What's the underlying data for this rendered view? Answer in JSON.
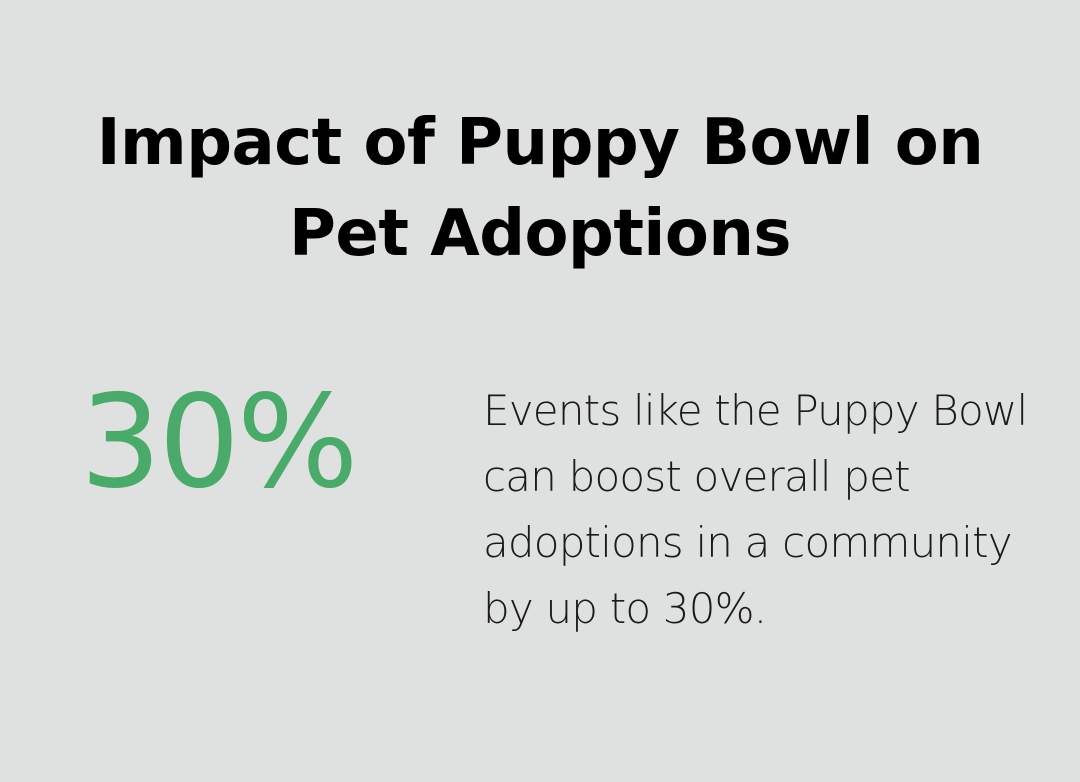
{
  "title": "Impact of Puppy Bowl on Pet Adoptions",
  "stat": {
    "value": "30%",
    "description": "Events like the Puppy Bowl can boost overall pet adoptions in a community by up to 30%."
  },
  "colors": {
    "background": "#dfe1e0",
    "accent": "#4aaa6a",
    "text": "#000000"
  }
}
